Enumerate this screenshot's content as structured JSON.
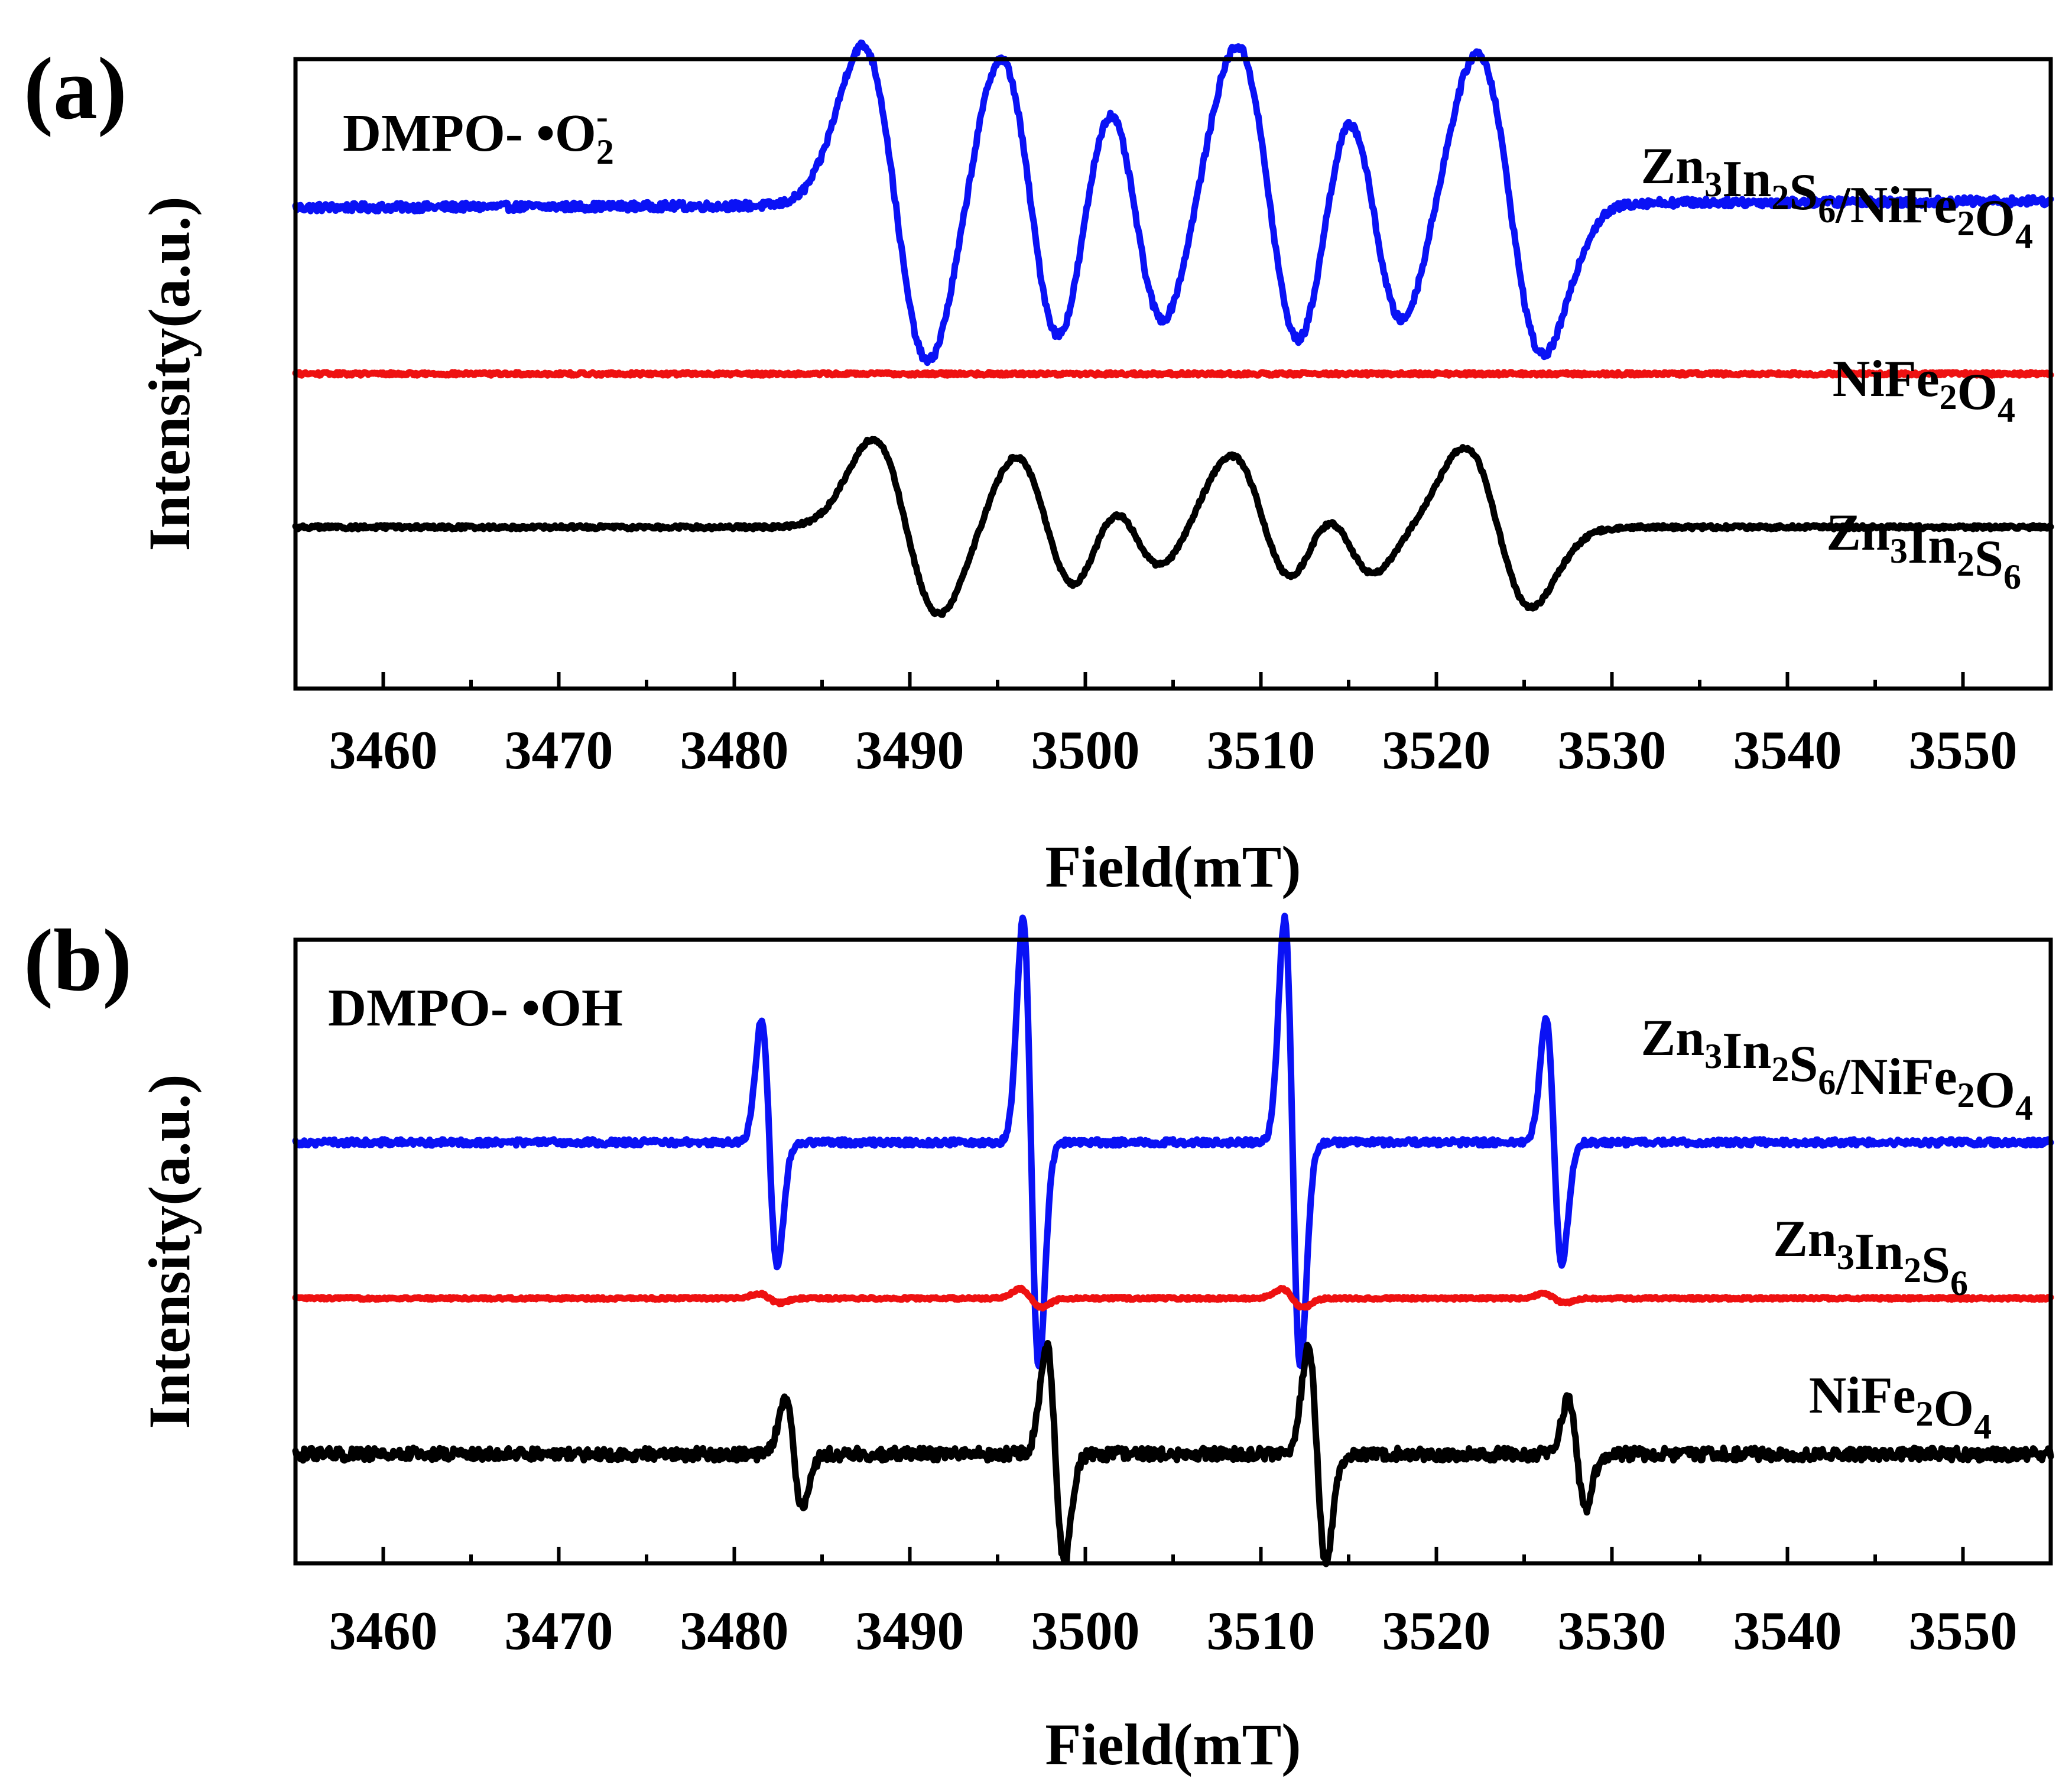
{
  "chart_data": [
    {
      "type": "line",
      "panel_label": "(a)",
      "annotation": {
        "parts": [
          {
            "text": "DMPO- •O",
            "style": "normal"
          },
          {
            "text": "2",
            "style": "sub"
          },
          {
            "text": "-",
            "style": "super"
          }
        ]
      },
      "xlabel": "Field(mT)",
      "ylabel": "Intensity(a.u.)",
      "xlim": [
        3455,
        3555
      ],
      "ylim": [
        -0.5,
        3.4
      ],
      "xticks": [
        3460,
        3470,
        3480,
        3490,
        3500,
        3510,
        3520,
        3530,
        3540,
        3550
      ],
      "tick_labels": [
        "3460",
        "3470",
        "3480",
        "3490",
        "3500",
        "3510",
        "3520",
        "3530",
        "3540",
        "3550"
      ],
      "series": [
        {
          "name": "Zn3In2S6/NiFe2O4",
          "label_parts": [
            [
              "Zn",
              "n"
            ],
            [
              "3",
              "s"
            ],
            [
              "In",
              "n"
            ],
            [
              "2",
              "s"
            ],
            [
              "S",
              "n"
            ],
            [
              "6",
              "s"
            ],
            [
              "/NiFe",
              "n"
            ],
            [
              "2",
              "s"
            ],
            [
              "O",
              "n"
            ],
            [
              "4",
              "s"
            ]
          ],
          "color": "#0a12f5",
          "baseline": 2.5,
          "noise": 0.025,
          "drift": 0.04,
          "hump": 0.15,
          "peaks": [
            {
              "center": 3489.2,
              "amplitude": 1.0,
              "width": 1.9
            },
            {
              "center": 3496.9,
              "amplitude": 0.95,
              "width": 1.8
            },
            {
              "center": 3502.8,
              "amplitude": 0.75,
              "width": 1.7
            },
            {
              "center": 3510.5,
              "amplitude": 1.0,
              "width": 1.9
            },
            {
              "center": 3516.4,
              "amplitude": 0.75,
              "width": 1.7
            },
            {
              "center": 3524.2,
              "amplitude": 0.95,
              "width": 1.9
            }
          ]
        },
        {
          "name": "NiFe2O4",
          "label_parts": [
            [
              "NiFe",
              "n"
            ],
            [
              "2",
              "s"
            ],
            [
              "O",
              "n"
            ],
            [
              "4",
              "s"
            ]
          ],
          "color": "#ee1111",
          "baseline": 1.45,
          "noise": 0.01,
          "drift": 0.0,
          "hump": 0.0,
          "peaks": []
        },
        {
          "name": "Zn3In2S6",
          "label_parts": [
            [
              "Zn",
              "n"
            ],
            [
              "3",
              "s"
            ],
            [
              "In",
              "n"
            ],
            [
              "2",
              "s"
            ],
            [
              "S",
              "n"
            ],
            [
              "6",
              "s"
            ]
          ],
          "color": "#000000",
          "baseline": 0.5,
          "noise": 0.012,
          "drift": 0.0,
          "hump": 0.08,
          "peaks": [
            {
              "center": 3489.8,
              "amplitude": 0.55,
              "width": 1.9
            },
            {
              "center": 3497.8,
              "amplitude": 0.45,
              "width": 1.8
            },
            {
              "center": 3502.8,
              "amplitude": 0.25,
              "width": 1.6
            },
            {
              "center": 3510.2,
              "amplitude": 0.45,
              "width": 1.9
            },
            {
              "center": 3514.9,
              "amplitude": 0.28,
              "width": 1.6
            },
            {
              "center": 3523.5,
              "amplitude": 0.5,
              "width": 1.9
            }
          ]
        }
      ]
    },
    {
      "type": "line",
      "panel_label": "(b)",
      "annotation": {
        "parts": [
          {
            "text": "DMPO- •OH",
            "style": "normal"
          }
        ]
      },
      "xlabel": "Field(mT)",
      "ylabel": "Intensity(a.u.)",
      "xlim": [
        3455,
        3555
      ],
      "ylim": [
        -0.7,
        3.3
      ],
      "xticks": [
        3460,
        3470,
        3480,
        3490,
        3500,
        3510,
        3520,
        3530,
        3540,
        3550
      ],
      "tick_labels": [
        "3460",
        "3470",
        "3480",
        "3490",
        "3500",
        "3510",
        "3520",
        "3530",
        "3540",
        "3550"
      ],
      "series": [
        {
          "name": "Zn3In2S6/NiFe2O4",
          "label_parts": [
            [
              "Zn",
              "n"
            ],
            [
              "3",
              "s"
            ],
            [
              "In",
              "n"
            ],
            [
              "2",
              "s"
            ],
            [
              "S",
              "n"
            ],
            [
              "6",
              "s"
            ],
            [
              "/NiFe",
              "n"
            ],
            [
              "2",
              "s"
            ],
            [
              "O",
              "n"
            ],
            [
              "4",
              "s"
            ]
          ],
          "color": "#0a12f5",
          "baseline": 2.0,
          "noise": 0.02,
          "drift": 0.0,
          "hump": 0.0,
          "peaks": [
            {
              "center": 3482.0,
              "amplitude": 0.8,
              "width": 0.45
            },
            {
              "center": 3496.9,
              "amplitude": 1.45,
              "width": 0.45
            },
            {
              "center": 3511.8,
              "amplitude": 1.45,
              "width": 0.45
            },
            {
              "center": 3526.7,
              "amplitude": 0.8,
              "width": 0.45
            }
          ]
        },
        {
          "name": "Zn3In2S6",
          "label_parts": [
            [
              "Zn",
              "n"
            ],
            [
              "3",
              "s"
            ],
            [
              "In",
              "n"
            ],
            [
              "2",
              "s"
            ],
            [
              "S",
              "n"
            ],
            [
              "6",
              "s"
            ]
          ],
          "color": "#ee1111",
          "baseline": 1.0,
          "noise": 0.008,
          "drift": 0.0,
          "hump": 0.0,
          "peaks": [
            {
              "center": 3482.0,
              "amplitude": 0.03,
              "width": 0.6
            },
            {
              "center": 3496.9,
              "amplitude": 0.06,
              "width": 0.6
            },
            {
              "center": 3511.8,
              "amplitude": 0.06,
              "width": 0.6
            },
            {
              "center": 3526.7,
              "amplitude": 0.03,
              "width": 0.6
            }
          ]
        },
        {
          "name": "NiFe2O4",
          "label_parts": [
            [
              "NiFe",
              "n"
            ],
            [
              "2",
              "s"
            ],
            [
              "O",
              "n"
            ],
            [
              "4",
              "s"
            ]
          ],
          "color": "#000000",
          "baseline": 0.0,
          "noise": 0.04,
          "drift": 0.0,
          "hump": 0.0,
          "peaks": [
            {
              "center": 3483.4,
              "amplitude": 0.35,
              "width": 0.5
            },
            {
              "center": 3498.3,
              "amplitude": 0.7,
              "width": 0.5
            },
            {
              "center": 3513.2,
              "amplitude": 0.7,
              "width": 0.5
            },
            {
              "center": 3528.0,
              "amplitude": 0.35,
              "width": 0.5
            }
          ]
        }
      ]
    }
  ]
}
